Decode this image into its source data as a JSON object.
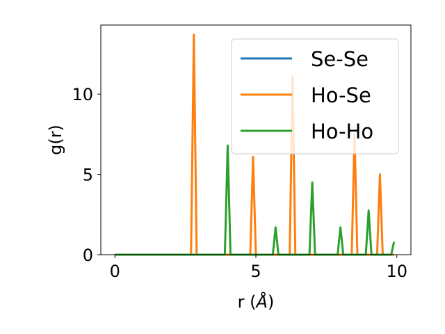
{
  "chart_data": {
    "type": "line",
    "title": "",
    "xlabel": "r (",
    "xlabel_unit": "Å",
    "xlabel_suffix": ")",
    "ylabel": "g(r)",
    "xlim": [
      -0.5,
      10.5
    ],
    "ylim": [
      0,
      14.3
    ],
    "xticks": [
      0,
      5,
      10
    ],
    "yticks": [
      0,
      5,
      10
    ],
    "grid": false,
    "legend_position": "top-right",
    "series": [
      {
        "name": "Se-Se",
        "color": "#1f77b4",
        "points": [
          [
            0,
            0
          ],
          [
            9.9,
            0
          ]
        ]
      },
      {
        "name": "Ho-Se",
        "color": "#ff7f0e",
        "points": [
          [
            0,
            0
          ],
          [
            2.7,
            0
          ],
          [
            2.8,
            13.7
          ],
          [
            2.9,
            0
          ],
          [
            4.8,
            0
          ],
          [
            4.9,
            6.1
          ],
          [
            5.0,
            0
          ],
          [
            6.2,
            0
          ],
          [
            6.3,
            11.1
          ],
          [
            6.4,
            0
          ],
          [
            8.4,
            0
          ],
          [
            8.5,
            7.5
          ],
          [
            8.6,
            0
          ],
          [
            9.3,
            0
          ],
          [
            9.4,
            5.0
          ],
          [
            9.5,
            0
          ],
          [
            9.9,
            0
          ]
        ]
      },
      {
        "name": "Ho-Ho",
        "color": "#2ca02c",
        "points": [
          [
            0,
            0
          ],
          [
            3.9,
            0
          ],
          [
            4.0,
            6.8
          ],
          [
            4.1,
            0
          ],
          [
            5.6,
            0
          ],
          [
            5.7,
            1.7
          ],
          [
            5.8,
            0
          ],
          [
            6.9,
            0
          ],
          [
            7.0,
            4.5
          ],
          [
            7.1,
            0
          ],
          [
            7.9,
            0
          ],
          [
            8.0,
            1.7
          ],
          [
            8.1,
            0
          ],
          [
            8.9,
            0
          ],
          [
            9.0,
            2.75
          ],
          [
            9.1,
            0
          ],
          [
            9.8,
            0
          ],
          [
            9.9,
            0.8
          ]
        ]
      }
    ]
  }
}
